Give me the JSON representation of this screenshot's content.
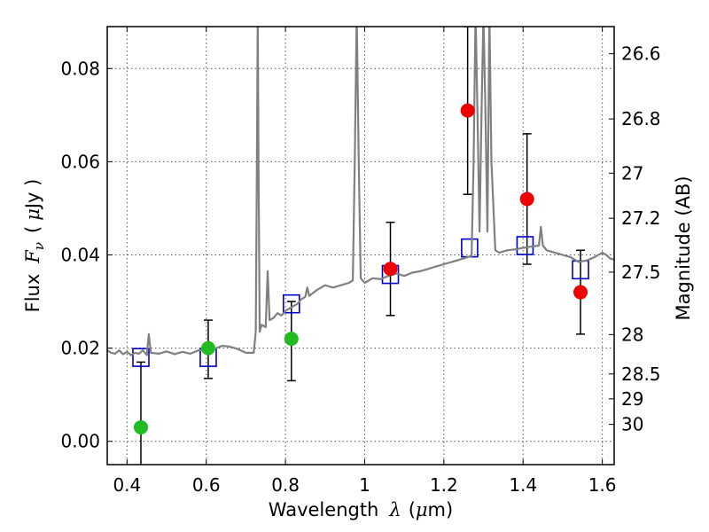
{
  "chart_data": {
    "type": "scatter",
    "xlabel_text": "Wavelength",
    "xlabel_symbol": "λ",
    "xlabel_unit_open": "(",
    "xlabel_unit_mu": "μ",
    "xlabel_unit_rest": "m)",
    "ylabel_text": "Flux",
    "ylabel_symbol": "F",
    "ylabel_subscript": "ν",
    "ylabel_unit_open": "(",
    "ylabel_unit_mu": "μ",
    "ylabel_unit_rest": "Jy )",
    "y2label": "Magnitude (AB)",
    "xlim": [
      0.35,
      1.63
    ],
    "ylim": [
      -0.005,
      0.089
    ],
    "x_ticks": [
      0.4,
      0.6,
      0.8,
      1.0,
      1.2,
      1.4,
      1.6
    ],
    "x_tick_labels": [
      "0.4",
      "0.6",
      "0.8",
      "1",
      "1.2",
      "1.4",
      "1.6"
    ],
    "y_ticks": [
      0.0,
      0.02,
      0.04,
      0.06,
      0.08
    ],
    "y_tick_labels": [
      "0.00",
      "0.02",
      "0.04",
      "0.06",
      "0.08"
    ],
    "mag_ticks": [
      26.6,
      26.8,
      27.0,
      27.2,
      27.5,
      28.0,
      28.5,
      29.0,
      30.0
    ],
    "mag_tick_labels": [
      "26.6",
      "26.8",
      "27",
      "27.2",
      "27.5",
      "28",
      "28.5",
      "29",
      "30"
    ],
    "grid": true,
    "colors": {
      "spectrum": "#808080",
      "model_points": "#0000cc",
      "green_points": "#22bb22",
      "red_points": "#ee0000",
      "error_bars": "#000000",
      "grid": "#555555"
    },
    "series": [
      {
        "marker": "circle",
        "color": "green",
        "points": [
          {
            "x": 0.435,
            "y": 0.003,
            "yerr_low": -0.006,
            "yerr_high": 0.017
          },
          {
            "x": 0.605,
            "y": 0.02,
            "yerr_low": 0.0135,
            "yerr_high": 0.026
          },
          {
            "x": 0.815,
            "y": 0.022,
            "yerr_low": 0.013,
            "yerr_high": 0.03
          }
        ]
      },
      {
        "marker": "circle",
        "color": "red",
        "points": [
          {
            "x": 1.065,
            "y": 0.037,
            "yerr_low": 0.027,
            "yerr_high": 0.047
          },
          {
            "x": 1.26,
            "y": 0.071,
            "yerr_low": 0.053,
            "yerr_high": 0.089
          },
          {
            "x": 1.41,
            "y": 0.052,
            "yerr_low": 0.038,
            "yerr_high": 0.066
          },
          {
            "x": 1.545,
            "y": 0.032,
            "yerr_low": 0.023,
            "yerr_high": 0.041
          }
        ]
      },
      {
        "marker": "open-square",
        "color": "blue",
        "points": [
          {
            "x": 0.435,
            "y": 0.018
          },
          {
            "x": 0.605,
            "y": 0.018
          },
          {
            "x": 0.815,
            "y": 0.0295
          },
          {
            "x": 1.065,
            "y": 0.0358
          },
          {
            "x": 1.265,
            "y": 0.0415
          },
          {
            "x": 1.405,
            "y": 0.042
          },
          {
            "x": 1.545,
            "y": 0.0368
          }
        ]
      },
      {
        "marker": "line",
        "color": "gray",
        "points": [
          [
            0.35,
            0.0195
          ],
          [
            0.36,
            0.019
          ],
          [
            0.37,
            0.0188
          ],
          [
            0.38,
            0.0195
          ],
          [
            0.39,
            0.0187
          ],
          [
            0.4,
            0.0192
          ],
          [
            0.41,
            0.0185
          ],
          [
            0.42,
            0.019
          ],
          [
            0.43,
            0.0188
          ],
          [
            0.44,
            0.0195
          ],
          [
            0.45,
            0.0185
          ],
          [
            0.455,
            0.023
          ],
          [
            0.46,
            0.019
          ],
          [
            0.48,
            0.0188
          ],
          [
            0.5,
            0.0193
          ],
          [
            0.52,
            0.0187
          ],
          [
            0.54,
            0.0192
          ],
          [
            0.56,
            0.0188
          ],
          [
            0.58,
            0.0195
          ],
          [
            0.6,
            0.0198
          ],
          [
            0.62,
            0.0198
          ],
          [
            0.64,
            0.0205
          ],
          [
            0.66,
            0.0203
          ],
          [
            0.68,
            0.0198
          ],
          [
            0.7,
            0.019
          ],
          [
            0.72,
            0.019
          ],
          [
            0.725,
            0.0235
          ],
          [
            0.728,
            0.06
          ],
          [
            0.73,
            0.092
          ],
          [
            0.732,
            0.06
          ],
          [
            0.735,
            0.0235
          ],
          [
            0.74,
            0.025
          ],
          [
            0.75,
            0.0245
          ],
          [
            0.755,
            0.0365
          ],
          [
            0.76,
            0.026
          ],
          [
            0.77,
            0.0265
          ],
          [
            0.78,
            0.0275
          ],
          [
            0.79,
            0.027
          ],
          [
            0.8,
            0.028
          ],
          [
            0.81,
            0.0285
          ],
          [
            0.82,
            0.029
          ],
          [
            0.83,
            0.0295
          ],
          [
            0.84,
            0.0305
          ],
          [
            0.85,
            0.031
          ],
          [
            0.855,
            0.033
          ],
          [
            0.86,
            0.0312
          ],
          [
            0.88,
            0.0325
          ],
          [
            0.9,
            0.0335
          ],
          [
            0.92,
            0.033
          ],
          [
            0.94,
            0.0335
          ],
          [
            0.96,
            0.034
          ],
          [
            0.97,
            0.0345
          ],
          [
            0.975,
            0.06
          ],
          [
            0.98,
            0.092
          ],
          [
            0.985,
            0.06
          ],
          [
            0.99,
            0.035
          ],
          [
            1.0,
            0.034
          ],
          [
            1.02,
            0.035
          ],
          [
            1.04,
            0.0348
          ],
          [
            1.06,
            0.0355
          ],
          [
            1.08,
            0.036
          ],
          [
            1.1,
            0.0355
          ],
          [
            1.12,
            0.0362
          ],
          [
            1.14,
            0.0365
          ],
          [
            1.16,
            0.037
          ],
          [
            1.18,
            0.0375
          ],
          [
            1.2,
            0.038
          ],
          [
            1.22,
            0.0385
          ],
          [
            1.24,
            0.039
          ],
          [
            1.26,
            0.0395
          ],
          [
            1.27,
            0.0398
          ],
          [
            1.275,
            0.06
          ],
          [
            1.28,
            0.092
          ],
          [
            1.285,
            0.07
          ],
          [
            1.29,
            0.045
          ],
          [
            1.295,
            0.07
          ],
          [
            1.3,
            0.092
          ],
          [
            1.305,
            0.07
          ],
          [
            1.31,
            0.045
          ],
          [
            1.315,
            0.092
          ],
          [
            1.32,
            0.06
          ],
          [
            1.33,
            0.041
          ],
          [
            1.34,
            0.0405
          ],
          [
            1.36,
            0.041
          ],
          [
            1.38,
            0.0412
          ],
          [
            1.4,
            0.0415
          ],
          [
            1.42,
            0.0418
          ],
          [
            1.44,
            0.042
          ],
          [
            1.445,
            0.046
          ],
          [
            1.45,
            0.042
          ],
          [
            1.46,
            0.041
          ],
          [
            1.48,
            0.0405
          ],
          [
            1.5,
            0.04
          ],
          [
            1.52,
            0.0395
          ],
          [
            1.54,
            0.0385
          ],
          [
            1.56,
            0.0388
          ],
          [
            1.58,
            0.0395
          ],
          [
            1.6,
            0.0405
          ],
          [
            1.61,
            0.04
          ],
          [
            1.62,
            0.0392
          ],
          [
            1.63,
            0.039
          ]
        ]
      }
    ]
  }
}
